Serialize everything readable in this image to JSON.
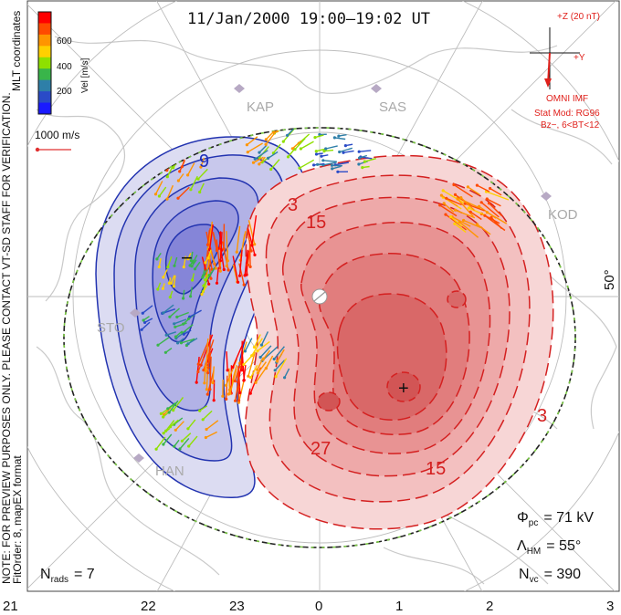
{
  "header": {
    "title": "11/Jan/2000 19:00–19:02 UT"
  },
  "left_note": {
    "line1": "NOTE: FOR PREVIEW PURPOSES ONLY. PLEASE CONTACT VT-SD STAFF FOR VERIFICATION.",
    "line2": "FitOrder: 8, mapEX format",
    "mlt_label": "MLT coordinates"
  },
  "colorbar": {
    "label": "Vel [m/s]",
    "ticks": [
      "600",
      "400",
      "200"
    ],
    "colors": [
      "#ff0000",
      "#ff4a00",
      "#ff9500",
      "#ffd000",
      "#8fe000",
      "#39b54a",
      "#2e7fa8",
      "#2a4bc7",
      "#1a1aff"
    ]
  },
  "ref_vector": {
    "label": "1000 m/s",
    "color": "#e03030"
  },
  "imf": {
    "z_label": "+Z (20 nT)",
    "y_label": "+Y",
    "source": "OMNI IMF",
    "model1": "Stat Mod: RG96",
    "model2": "Bz−, 6<BT<12",
    "color": "#e0201b"
  },
  "stations": [
    "KAP",
    "SAS",
    "KOD",
    "STO",
    "HAN"
  ],
  "lat_label": "50°",
  "contours": {
    "neg_labels": [
      "9"
    ],
    "pos_labels": [
      "3",
      "15",
      "27",
      "15",
      "3"
    ],
    "neg_color": "#1f2fb8",
    "pos_color": "#d42020"
  },
  "stats": {
    "phi_sym": "Φ",
    "phi_sub": "pc",
    "phi_val": "= 71 kV",
    "lam_sym": "Λ",
    "lam_sub": "HM",
    "lam_val": "= 55°",
    "nvc_sym": "N",
    "nvc_sub": "vc",
    "nvc_val": "= 390",
    "nrads_sym": "N",
    "nrads_sub": "rads",
    "nrads_val": "= 7"
  },
  "mlt_axis": [
    "21",
    "22",
    "23",
    "0",
    "1",
    "2",
    "3"
  ],
  "markers": {
    "min": "−",
    "max": "+"
  }
}
